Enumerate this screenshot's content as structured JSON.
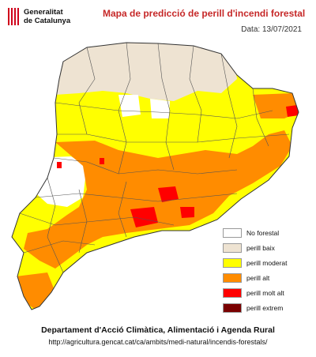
{
  "logo": {
    "line1": "Generalitat",
    "line2": "de Catalunya"
  },
  "title": "Mapa de predicció de perill d'incendi forestal",
  "date": "Data: 13/07/2021",
  "legend": [
    {
      "label": "No forestal",
      "color": "#ffffff"
    },
    {
      "label": "perill baix",
      "color": "#eee3d2"
    },
    {
      "label": "perill moderat",
      "color": "#ffff00"
    },
    {
      "label": "perill alt",
      "color": "#ff8c00"
    },
    {
      "label": "perill molt alt",
      "color": "#ff0000"
    },
    {
      "label": "perill extrem",
      "color": "#7a0000"
    }
  ],
  "footer": {
    "organization": "Departament d'Acció Climàtica, Alimentació i Agenda Rural",
    "url": "http://agricultura.gencat.cat/ca/ambits/medi-natural/incendis-forestals/"
  }
}
